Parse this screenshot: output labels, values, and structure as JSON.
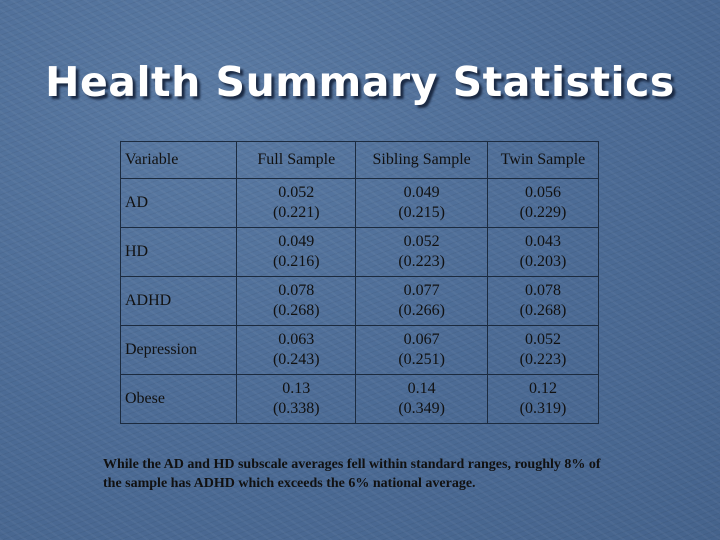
{
  "slide": {
    "title": "Health Summary Statistics",
    "footer": "While the AD and HD subscale averages fell within standard ranges, roughly 8% of the sample has ADHD which exceeds the 6% national average."
  },
  "table": {
    "headers": [
      "Variable",
      "Full Sample",
      "Sibling Sample",
      "Twin Sample"
    ],
    "rows": [
      {
        "label": "AD",
        "full": [
          "0.052",
          "(0.221)"
        ],
        "sibling": [
          "0.049",
          "(0.215)"
        ],
        "twin": [
          "0.056",
          "(0.229)"
        ]
      },
      {
        "label": "HD",
        "full": [
          "0.049",
          "(0.216)"
        ],
        "sibling": [
          "0.052",
          "(0.223)"
        ],
        "twin": [
          "0.043",
          "(0.203)"
        ]
      },
      {
        "label": "ADHD",
        "full": [
          "0.078",
          "(0.268)"
        ],
        "sibling": [
          "0.077",
          "(0.266)"
        ],
        "twin": [
          "0.078",
          "(0.268)"
        ]
      },
      {
        "label": "Depression",
        "full": [
          "0.063",
          "(0.243)"
        ],
        "sibling": [
          "0.067",
          "(0.251)"
        ],
        "twin": [
          "0.052",
          "(0.223)"
        ]
      },
      {
        "label": "Obese",
        "full": [
          "0.13",
          "(0.338)"
        ],
        "sibling": [
          "0.14",
          "(0.349)"
        ],
        "twin": [
          "0.12",
          "(0.319)"
        ]
      }
    ]
  }
}
